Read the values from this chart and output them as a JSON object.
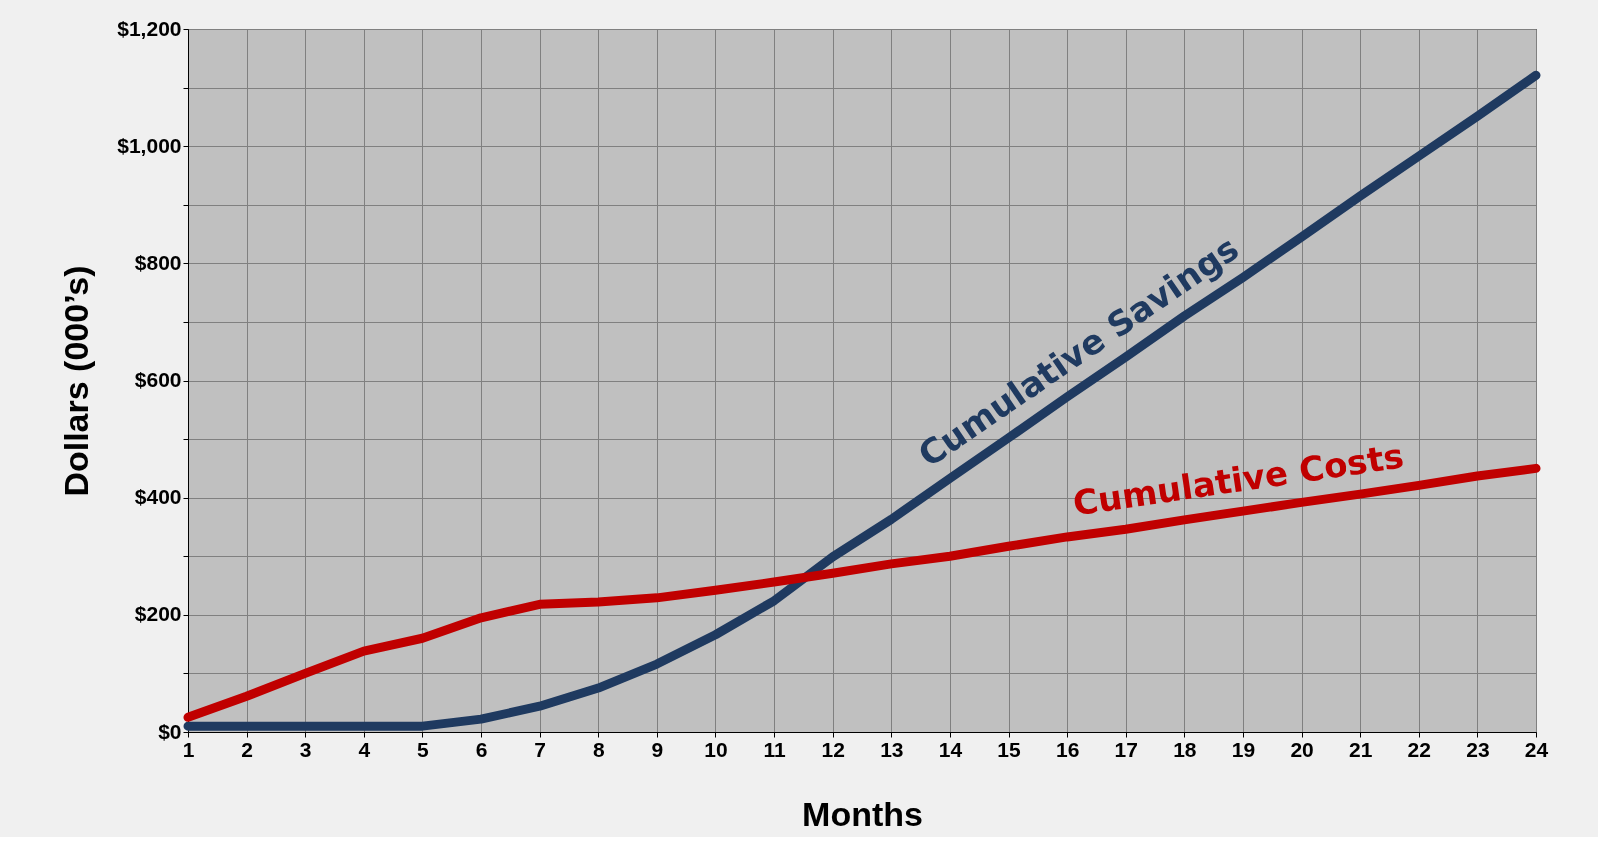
{
  "chart_data": {
    "type": "line",
    "xlabel": "Months",
    "ylabel": "Dollars (000’s)",
    "x": [
      1,
      2,
      3,
      4,
      5,
      6,
      7,
      8,
      9,
      10,
      11,
      12,
      13,
      14,
      15,
      16,
      17,
      18,
      19,
      20,
      21,
      22,
      23,
      24
    ],
    "xlim": [
      1,
      24
    ],
    "xticks": [
      1,
      2,
      3,
      4,
      5,
      6,
      7,
      8,
      9,
      10,
      11,
      12,
      13,
      14,
      15,
      16,
      17,
      18,
      19,
      20,
      21,
      22,
      23,
      24
    ],
    "ylim": [
      0,
      1200
    ],
    "yticks": [
      {
        "value": 0,
        "label": "$0"
      },
      {
        "value": 100,
        "label": null
      },
      {
        "value": 200,
        "label": "$200"
      },
      {
        "value": 300,
        "label": null
      },
      {
        "value": 400,
        "label": "$400"
      },
      {
        "value": 500,
        "label": null
      },
      {
        "value": 600,
        "label": "$600"
      },
      {
        "value": 700,
        "label": null
      },
      {
        "value": 800,
        "label": "$800"
      },
      {
        "value": 900,
        "label": null
      },
      {
        "value": 1000,
        "label": "$1,000"
      },
      {
        "value": 1100,
        "label": null
      },
      {
        "value": 1200,
        "label": "$1,200"
      }
    ],
    "grid": true,
    "marker": "none",
    "line_style": "solid",
    "series": [
      {
        "name": "Cumulative Savings",
        "color": "#1f3a60",
        "values": [
          10,
          10,
          10,
          10,
          10,
          22,
          44,
          75,
          116,
          166,
          224,
          299,
          363,
          433,
          502,
          572,
          640,
          710,
          776,
          845,
          915,
          983,
          1051,
          1121
        ]
      },
      {
        "name": "Cumulative Costs",
        "color": "#c00000",
        "values": [
          25,
          61,
          100,
          138,
          160,
          195,
          218,
          222,
          229,
          242,
          256,
          271,
          287,
          300,
          317,
          333,
          346,
          362,
          377,
          392,
          406,
          421,
          437,
          450
        ]
      }
    ]
  }
}
